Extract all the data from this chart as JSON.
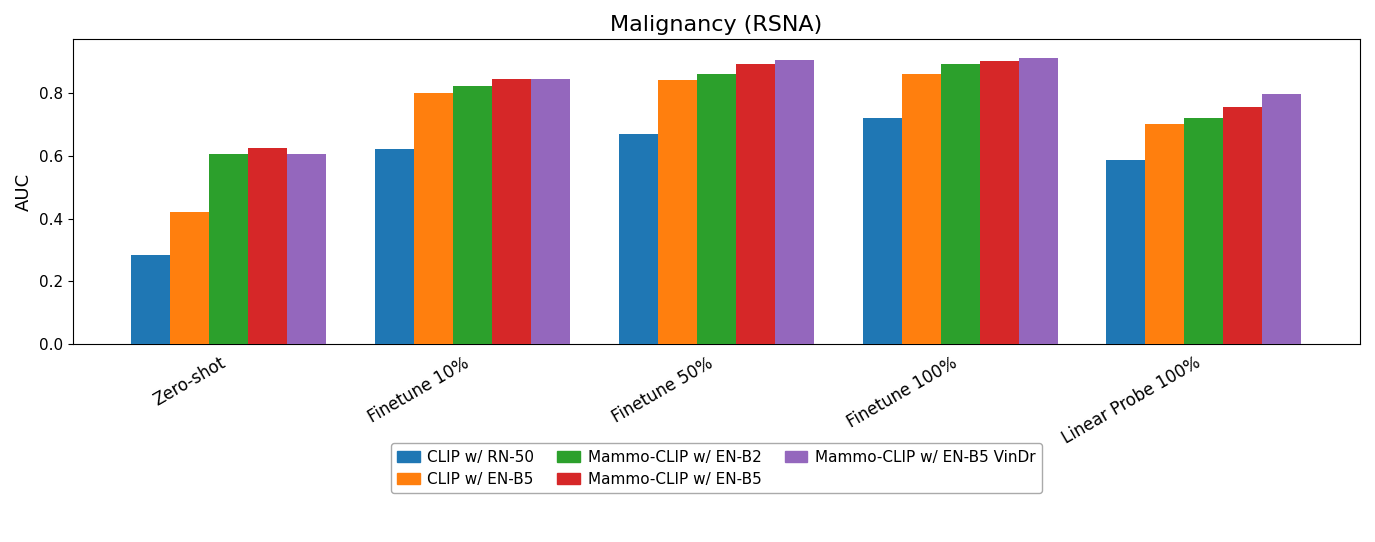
{
  "title": "Malignancy (RSNA)",
  "ylabel": "AUC",
  "categories": [
    "Zero-shot",
    "Finetune 10%",
    "Finetune 50%",
    "Finetune 100%",
    "Linear Probe 100%"
  ],
  "series": [
    {
      "label": "CLIP w/ RN-50",
      "color": "#1f77b4",
      "values": [
        0.285,
        0.62,
        0.67,
        0.72,
        0.585
      ]
    },
    {
      "label": "CLIP w/ EN-B5",
      "color": "#ff7f0e",
      "values": [
        0.42,
        0.8,
        0.84,
        0.86,
        0.7
      ]
    },
    {
      "label": "Mammo-CLIP w/ EN-B2",
      "color": "#2ca02c",
      "values": [
        0.605,
        0.82,
        0.86,
        0.89,
        0.72
      ]
    },
    {
      "label": "Mammo-CLIP w/ EN-B5",
      "color": "#d62728",
      "values": [
        0.625,
        0.845,
        0.89,
        0.9,
        0.755
      ]
    },
    {
      "label": "Mammo-CLIP w/ EN-B5 VinDr",
      "color": "#9467bd",
      "values": [
        0.605,
        0.845,
        0.905,
        0.91,
        0.795
      ]
    }
  ],
  "ylim": [
    0.0,
    0.97
  ],
  "figsize": [
    13.75,
    5.42
  ],
  "dpi": 100,
  "bar_width": 0.16,
  "legend_ncol": 3,
  "legend_fontsize": 11,
  "title_fontsize": 16,
  "ylabel_fontsize": 13
}
